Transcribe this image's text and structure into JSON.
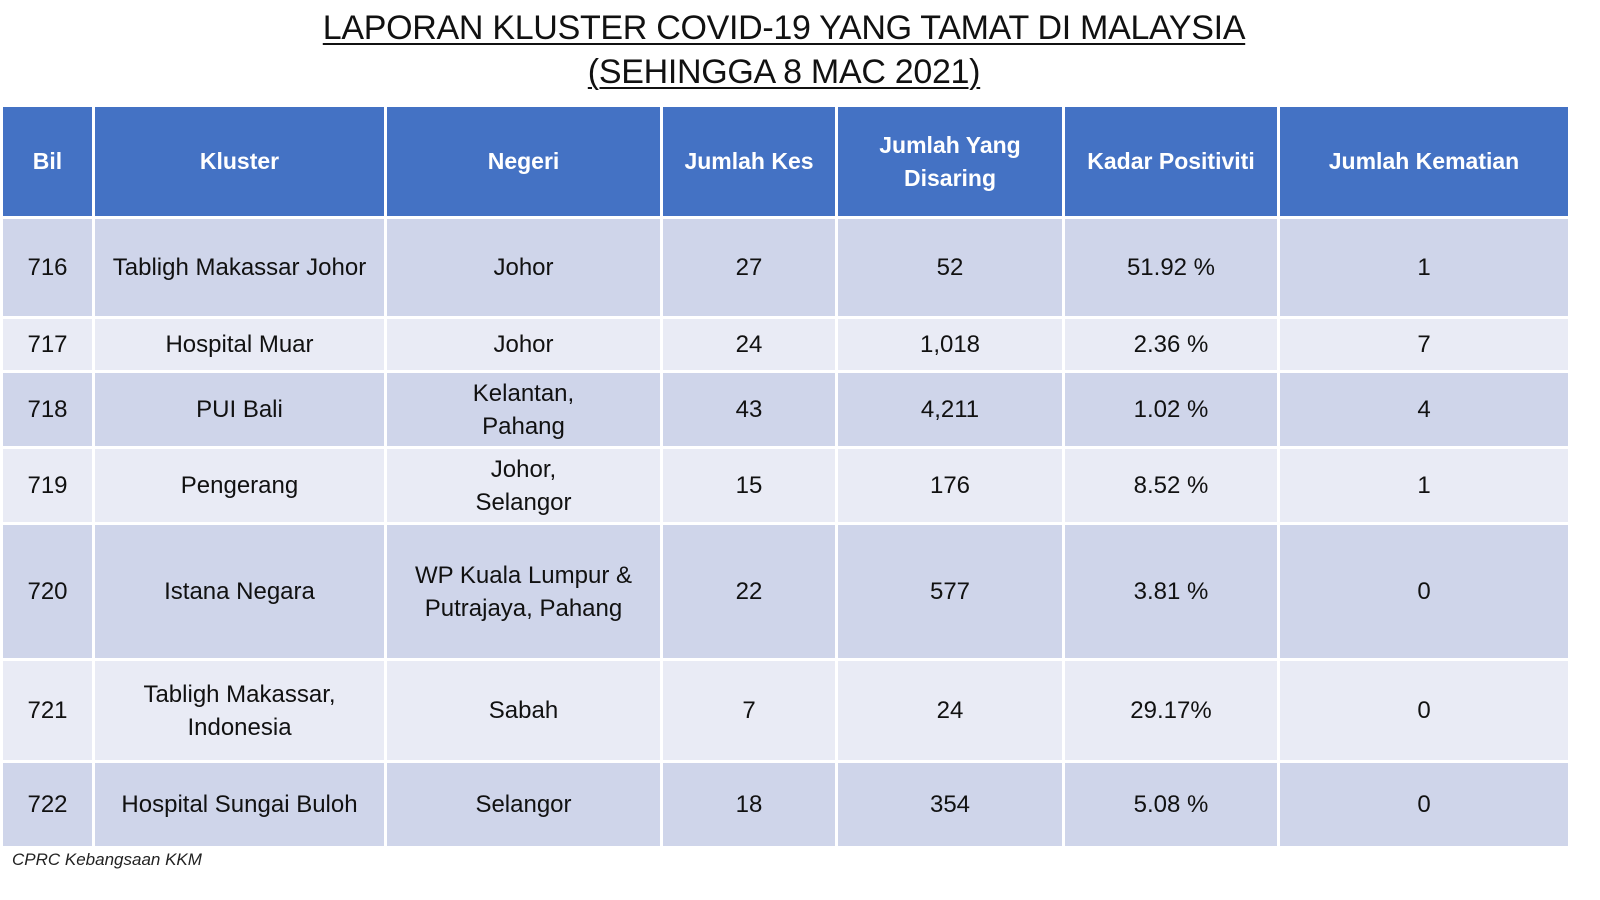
{
  "title": {
    "line1": "LAPORAN KLUSTER COVID-19 YANG TAMAT DI MALAYSIA",
    "line2": "(SEHINGGA 8 MAC 2021)"
  },
  "table": {
    "headers": [
      "Bil",
      "Kluster",
      "Negeri",
      "Jumlah Kes",
      "Jumlah Yang Disaring",
      "Kadar Positiviti",
      "Jumlah Kematian"
    ],
    "rows": [
      [
        "716",
        "Tabligh Makassar Johor",
        "Johor",
        "27",
        "52",
        "51.92 %",
        "1"
      ],
      [
        "717",
        "Hospital Muar",
        "Johor",
        "24",
        "1,018",
        "2.36 %",
        "7"
      ],
      [
        "718",
        "PUI Bali",
        "Kelantan, Pahang",
        "43",
        "4,211",
        "1.02 %",
        "4"
      ],
      [
        "719",
        "Pengerang",
        "Johor, Selangor",
        "15",
        "176",
        "8.52 %",
        "1"
      ],
      [
        "720",
        "Istana Negara",
        "WP Kuala Lumpur & Putrajaya, Pahang",
        "22",
        "577",
        "3.81 %",
        "0"
      ],
      [
        "721",
        "Tabligh Makassar, Indonesia",
        "Sabah",
        "7",
        "24",
        "29.17%",
        "0"
      ],
      [
        "722",
        "Hospital Sungai Buloh",
        "Selangor",
        "18",
        "354",
        "5.08 %",
        "0"
      ]
    ]
  },
  "footer": "CPRC Kebangsaan KKM",
  "colors": {
    "header_bg": "#4472c4",
    "row_dark": "#cfd5ea",
    "row_light": "#e9ebf5"
  }
}
